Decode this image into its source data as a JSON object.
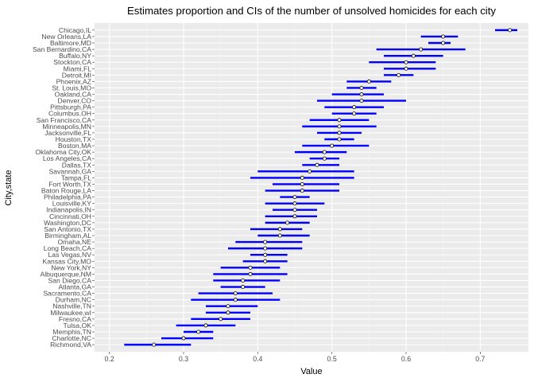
{
  "chart_data": {
    "type": "errorbar",
    "title": "Estimates proportion and CIs of the number of unsolved homicides for each city",
    "xlabel": "Value",
    "ylabel": "City,state",
    "xlim": [
      0.18,
      0.765
    ],
    "x_ticks": [
      0.2,
      0.3,
      0.4,
      0.5,
      0.6,
      0.7
    ],
    "x_tick_labels": [
      "0.2",
      "0.3",
      "0.4",
      "0.5",
      "0.6",
      "0.7"
    ],
    "grid": true,
    "colors": {
      "panel_bg": "#ebebeb",
      "grid_major": "#ffffff",
      "errorbar": "#0000ff",
      "point_fill": "#ffffff",
      "point_stroke": "#000000"
    },
    "points": [
      {
        "city": "Chicago,IL",
        "estimate": 0.74,
        "low": 0.72,
        "high": 0.75
      },
      {
        "city": "New Orleans,LA",
        "estimate": 0.65,
        "low": 0.62,
        "high": 0.67
      },
      {
        "city": "Baltimore,MD",
        "estimate": 0.65,
        "low": 0.63,
        "high": 0.66
      },
      {
        "city": "San Bernardino,CA",
        "estimate": 0.62,
        "low": 0.56,
        "high": 0.68
      },
      {
        "city": "Buffalo,NY",
        "estimate": 0.61,
        "low": 0.57,
        "high": 0.65
      },
      {
        "city": "Stockton,CA",
        "estimate": 0.6,
        "low": 0.55,
        "high": 0.64
      },
      {
        "city": "Miami,FL",
        "estimate": 0.6,
        "low": 0.57,
        "high": 0.64
      },
      {
        "city": "Detroit,MI",
        "estimate": 0.59,
        "low": 0.57,
        "high": 0.61
      },
      {
        "city": "Phoenix,AZ",
        "estimate": 0.55,
        "low": 0.52,
        "high": 0.58
      },
      {
        "city": "St. Louis,MO",
        "estimate": 0.54,
        "low": 0.52,
        "high": 0.56
      },
      {
        "city": "Oakland,CA",
        "estimate": 0.54,
        "low": 0.5,
        "high": 0.57
      },
      {
        "city": "Denver,CO",
        "estimate": 0.54,
        "low": 0.48,
        "high": 0.6
      },
      {
        "city": "Pittsburgh,PA",
        "estimate": 0.53,
        "low": 0.49,
        "high": 0.57
      },
      {
        "city": "Columbus,OH",
        "estimate": 0.53,
        "low": 0.5,
        "high": 0.56
      },
      {
        "city": "San Francisco,CA",
        "estimate": 0.51,
        "low": 0.47,
        "high": 0.55
      },
      {
        "city": "Minneapolis,MN",
        "estimate": 0.51,
        "low": 0.46,
        "high": 0.56
      },
      {
        "city": "Jacksonville,FL",
        "estimate": 0.51,
        "low": 0.48,
        "high": 0.54
      },
      {
        "city": "Houston,TX",
        "estimate": 0.51,
        "low": 0.49,
        "high": 0.53
      },
      {
        "city": "Boston,MA",
        "estimate": 0.5,
        "low": 0.46,
        "high": 0.55
      },
      {
        "city": "Oklahoma City,OK",
        "estimate": 0.49,
        "low": 0.45,
        "high": 0.52
      },
      {
        "city": "Los Angeles,CA",
        "estimate": 0.49,
        "low": 0.47,
        "high": 0.51
      },
      {
        "city": "Dallas,TX",
        "estimate": 0.48,
        "low": 0.46,
        "high": 0.51
      },
      {
        "city": "Savannah,GA",
        "estimate": 0.47,
        "low": 0.4,
        "high": 0.53
      },
      {
        "city": "Tampa,FL",
        "estimate": 0.46,
        "low": 0.39,
        "high": 0.53
      },
      {
        "city": "Fort Worth,TX",
        "estimate": 0.46,
        "low": 0.42,
        "high": 0.51
      },
      {
        "city": "Baton Rouge,LA",
        "estimate": 0.46,
        "low": 0.41,
        "high": 0.51
      },
      {
        "city": "Philadelphia,PA",
        "estimate": 0.45,
        "low": 0.43,
        "high": 0.47
      },
      {
        "city": "Louisville,KY",
        "estimate": 0.45,
        "low": 0.41,
        "high": 0.49
      },
      {
        "city": "Indianapolis,IN",
        "estimate": 0.45,
        "low": 0.42,
        "high": 0.48
      },
      {
        "city": "Cincinnati,OH",
        "estimate": 0.45,
        "low": 0.41,
        "high": 0.48
      },
      {
        "city": "Washington,DC",
        "estimate": 0.44,
        "low": 0.41,
        "high": 0.47
      },
      {
        "city": "San Antonio,TX",
        "estimate": 0.43,
        "low": 0.39,
        "high": 0.46
      },
      {
        "city": "Birmingham,AL",
        "estimate": 0.43,
        "low": 0.4,
        "high": 0.47
      },
      {
        "city": "Omaha,NE",
        "estimate": 0.41,
        "low": 0.37,
        "high": 0.46
      },
      {
        "city": "Long Beach,CA",
        "estimate": 0.41,
        "low": 0.36,
        "high": 0.46
      },
      {
        "city": "Las Vegas,NV",
        "estimate": 0.41,
        "low": 0.39,
        "high": 0.44
      },
      {
        "city": "Kansas City,MO",
        "estimate": 0.41,
        "low": 0.38,
        "high": 0.44
      },
      {
        "city": "New York,NY",
        "estimate": 0.39,
        "low": 0.35,
        "high": 0.43
      },
      {
        "city": "Albuquerque,NM",
        "estimate": 0.39,
        "low": 0.34,
        "high": 0.44
      },
      {
        "city": "San Diego,CA",
        "estimate": 0.38,
        "low": 0.34,
        "high": 0.43
      },
      {
        "city": "Atlanta,GA",
        "estimate": 0.38,
        "low": 0.35,
        "high": 0.41
      },
      {
        "city": "Sacramento,CA",
        "estimate": 0.37,
        "low": 0.32,
        "high": 0.42
      },
      {
        "city": "Durham,NC",
        "estimate": 0.37,
        "low": 0.31,
        "high": 0.43
      },
      {
        "city": "Nashville,TN",
        "estimate": 0.36,
        "low": 0.33,
        "high": 0.4
      },
      {
        "city": "Milwaukee,wI",
        "estimate": 0.36,
        "low": 0.33,
        "high": 0.39
      },
      {
        "city": "Fresno,CA",
        "estimate": 0.35,
        "low": 0.31,
        "high": 0.39
      },
      {
        "city": "Tulsa,OK",
        "estimate": 0.33,
        "low": 0.29,
        "high": 0.37
      },
      {
        "city": "Memphis,TN",
        "estimate": 0.32,
        "low": 0.3,
        "high": 0.34
      },
      {
        "city": "Charlotte,NC",
        "estimate": 0.3,
        "low": 0.27,
        "high": 0.34
      },
      {
        "city": "Richmond,VA",
        "estimate": 0.26,
        "low": 0.22,
        "high": 0.31
      }
    ]
  }
}
